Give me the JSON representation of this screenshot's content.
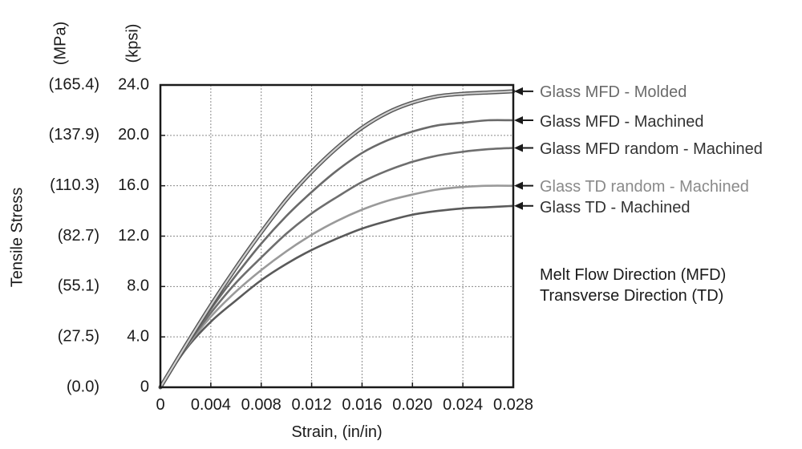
{
  "chart_data": {
    "type": "line",
    "title": "",
    "xlabel": "Strain, (in/in)",
    "ylabel": "Tensile Stress",
    "y_units_left": "(MPa)",
    "y_units_right": "(kpsi)",
    "xlim": [
      0,
      0.028
    ],
    "ylim": [
      0,
      24
    ],
    "grid": true,
    "x_ticks": [
      0,
      0.004,
      0.008,
      0.012,
      0.016,
      0.02,
      0.024,
      0.028
    ],
    "x_tick_labels": [
      "0",
      "0.004",
      "0.008",
      "0.012",
      "0.016",
      "0.020",
      "0.024",
      "0.028"
    ],
    "y_ticks": [
      0,
      4,
      8,
      12,
      16,
      20,
      24
    ],
    "y_tick_labels_kpsi": [
      "0",
      "4.0",
      "8.0",
      "12.0",
      "16.0",
      "20.0",
      "24.0"
    ],
    "y_tick_labels_mpa": [
      "(0.0)",
      "(27.5)",
      "(55.1)",
      "(82.7)",
      "(110.3)",
      "(137.9)",
      "(165.4)"
    ],
    "series": [
      {
        "name": "Glass MFD - Molded",
        "color": "#555555",
        "label_color": "#6b6b6b",
        "x": [
          0,
          0.002,
          0.004,
          0.006,
          0.008,
          0.01,
          0.012,
          0.014,
          0.016,
          0.018,
          0.02,
          0.022,
          0.024,
          0.026,
          0.028
        ],
        "y": [
          0,
          3.3,
          6.5,
          9.5,
          12.3,
          14.9,
          17.1,
          19.0,
          20.6,
          21.8,
          22.6,
          23.1,
          23.3,
          23.4,
          23.5
        ]
      },
      {
        "name": "Glass MFD - Machined",
        "color": "#6a6a6a",
        "label_color": "#333333",
        "x": [
          0,
          0.002,
          0.004,
          0.006,
          0.008,
          0.01,
          0.012,
          0.014,
          0.016,
          0.018,
          0.02,
          0.022,
          0.024,
          0.026,
          0.028
        ],
        "y": [
          0,
          3.2,
          6.2,
          8.9,
          11.4,
          13.6,
          15.5,
          17.2,
          18.6,
          19.6,
          20.3,
          20.8,
          21.0,
          21.2,
          21.2
        ]
      },
      {
        "name": "Glass MFD random - Machined",
        "color": "#6e6e6e",
        "label_color": "#333333",
        "x": [
          0,
          0.002,
          0.004,
          0.006,
          0.008,
          0.01,
          0.012,
          0.014,
          0.016,
          0.018,
          0.02,
          0.022,
          0.024,
          0.026,
          0.028
        ],
        "y": [
          0,
          3.2,
          5.9,
          8.3,
          10.3,
          12.2,
          13.8,
          15.1,
          16.3,
          17.2,
          17.9,
          18.4,
          18.7,
          18.9,
          19.0
        ]
      },
      {
        "name": "Glass TD random - Machined",
        "color": "#9a9a9a",
        "label_color": "#8a8a8a",
        "x": [
          0,
          0.002,
          0.004,
          0.006,
          0.008,
          0.01,
          0.012,
          0.014,
          0.016,
          0.018,
          0.02,
          0.022,
          0.024,
          0.026,
          0.028
        ],
        "y": [
          0,
          3.1,
          5.6,
          7.6,
          9.3,
          10.8,
          12.1,
          13.2,
          14.1,
          14.8,
          15.3,
          15.7,
          15.9,
          16.0,
          16.0
        ]
      },
      {
        "name": "Glass TD - Machined",
        "color": "#5a5a5a",
        "label_color": "#333333",
        "x": [
          0,
          0.002,
          0.004,
          0.006,
          0.008,
          0.01,
          0.012,
          0.014,
          0.016,
          0.018,
          0.02,
          0.022,
          0.024,
          0.026,
          0.028
        ],
        "y": [
          0,
          3.0,
          5.2,
          6.9,
          8.5,
          9.8,
          10.9,
          11.8,
          12.6,
          13.2,
          13.7,
          14.0,
          14.2,
          14.3,
          14.4
        ]
      }
    ],
    "annotations": [
      "Melt Flow Direction  (MFD)",
      "Transverse Direction  (TD)"
    ]
  }
}
